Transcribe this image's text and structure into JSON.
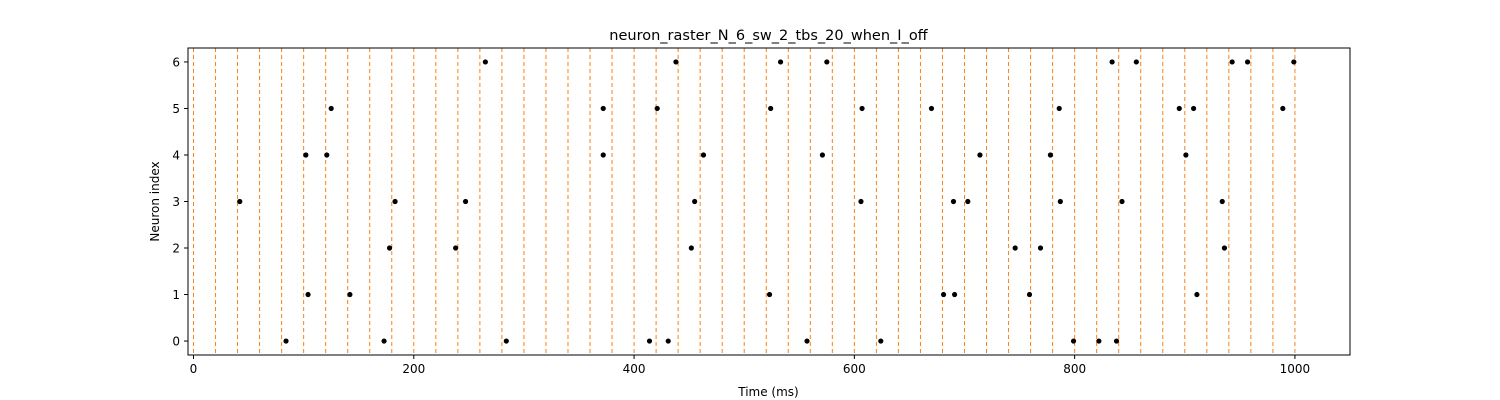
{
  "chart_data": {
    "type": "scatter",
    "title": "neuron_raster_N_6_sw_2_tbs_20_when_I_off",
    "xlabel": "Time (ms)",
    "ylabel": "Neuron index",
    "xlim": [
      -5,
      1050
    ],
    "ylim": [
      -0.3,
      6.3
    ],
    "xticks": [
      0,
      200,
      400,
      600,
      800,
      1000
    ],
    "yticks": [
      0,
      1,
      2,
      3,
      4,
      5,
      6
    ],
    "grid": false,
    "marker_color": "#000000",
    "vline_color": "#ff7f0e",
    "vlines": [
      0,
      20,
      40,
      60,
      80,
      100,
      120,
      140,
      160,
      180,
      200,
      220,
      240,
      260,
      280,
      300,
      320,
      340,
      360,
      380,
      400,
      420,
      440,
      460,
      480,
      500,
      520,
      540,
      560,
      580,
      600,
      620,
      640,
      660,
      680,
      700,
      720,
      740,
      760,
      780,
      800,
      820,
      840,
      860,
      880,
      900,
      920,
      940,
      960,
      980,
      1000
    ],
    "series": [
      {
        "neuron": 0,
        "x": [
          84,
          173,
          284,
          414,
          431,
          557,
          624,
          799,
          822,
          838
        ]
      },
      {
        "neuron": 1,
        "x": [
          104,
          142,
          523,
          681,
          691,
          759,
          911
        ]
      },
      {
        "neuron": 2,
        "x": [
          178,
          238,
          452,
          746,
          769,
          936
        ]
      },
      {
        "neuron": 3,
        "x": [
          42,
          183,
          247,
          455,
          606,
          690,
          703,
          787,
          843,
          934
        ]
      },
      {
        "neuron": 4,
        "x": [
          102,
          121,
          372,
          463,
          571,
          714,
          778,
          901
        ]
      },
      {
        "neuron": 5,
        "x": [
          125,
          372,
          421,
          524,
          607,
          670,
          786,
          895,
          908,
          989
        ]
      },
      {
        "neuron": 6,
        "x": [
          265,
          438,
          533,
          575,
          834,
          856,
          943,
          957,
          999
        ]
      }
    ]
  }
}
